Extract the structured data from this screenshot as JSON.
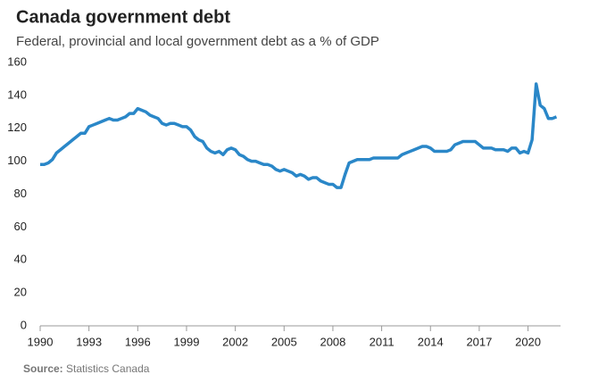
{
  "chart_data": {
    "type": "line",
    "title": "Canada government debt",
    "subtitle": "Federal, provincial and local government debt as a % of GDP",
    "source_label": "Source:",
    "source": "Statistics Canada",
    "x": [
      1990,
      1990.25,
      1990.5,
      1990.75,
      1991,
      1991.25,
      1991.5,
      1991.75,
      1992,
      1992.25,
      1992.5,
      1992.75,
      1993,
      1993.25,
      1993.5,
      1993.75,
      1994,
      1994.25,
      1994.5,
      1994.75,
      1995,
      1995.25,
      1995.5,
      1995.75,
      1996,
      1996.25,
      1996.5,
      1996.75,
      1997,
      1997.25,
      1997.5,
      1997.75,
      1998,
      1998.25,
      1998.5,
      1998.75,
      1999,
      1999.25,
      1999.5,
      1999.75,
      2000,
      2000.25,
      2000.5,
      2000.75,
      2001,
      2001.25,
      2001.5,
      2001.75,
      2002,
      2002.25,
      2002.5,
      2002.75,
      2003,
      2003.25,
      2003.5,
      2003.75,
      2004,
      2004.25,
      2004.5,
      2004.75,
      2005,
      2005.25,
      2005.5,
      2005.75,
      2006,
      2006.25,
      2006.5,
      2006.75,
      2007,
      2007.25,
      2007.5,
      2007.75,
      2008,
      2008.25,
      2008.5,
      2008.75,
      2009,
      2009.25,
      2009.5,
      2009.75,
      2010,
      2010.25,
      2010.5,
      2010.75,
      2011,
      2011.25,
      2011.5,
      2011.75,
      2012,
      2012.25,
      2012.5,
      2012.75,
      2013,
      2013.25,
      2013.5,
      2013.75,
      2014,
      2014.25,
      2014.5,
      2014.75,
      2015,
      2015.25,
      2015.5,
      2015.75,
      2016,
      2016.25,
      2016.5,
      2016.75,
      2017,
      2017.25,
      2017.5,
      2017.75,
      2018,
      2018.25,
      2018.5,
      2018.75,
      2019,
      2019.25,
      2019.5,
      2019.75,
      2020,
      2020.25,
      2020.5,
      2020.75,
      2021,
      2021.25,
      2021.5,
      2021.75
    ],
    "series": [
      {
        "name": "Government debt",
        "color": "#2a87c8",
        "values": [
          98,
          98,
          99,
          101,
          105,
          107,
          109,
          111,
          113,
          115,
          117,
          117,
          121,
          122,
          123,
          124,
          125,
          126,
          125,
          125,
          126,
          127,
          129,
          129,
          132,
          131,
          130,
          128,
          127,
          126,
          123,
          122,
          123,
          123,
          122,
          121,
          121,
          119,
          115,
          113,
          112,
          108,
          106,
          105,
          106,
          104,
          107,
          108,
          107,
          104,
          103,
          101,
          100,
          100,
          99,
          98,
          98,
          97,
          95,
          94,
          95,
          94,
          93,
          91,
          92,
          91,
          89,
          90,
          90,
          88,
          87,
          86,
          86,
          84,
          84,
          92,
          99,
          100,
          101,
          101,
          101,
          101,
          102,
          102,
          102,
          102,
          102,
          102,
          102,
          104,
          105,
          106,
          107,
          108,
          109,
          109,
          108,
          106,
          106,
          106,
          106,
          107,
          110,
          111,
          112,
          112,
          112,
          112,
          110,
          108,
          108,
          108,
          107,
          107,
          107,
          106,
          108,
          108,
          105,
          106,
          105,
          113,
          147,
          134,
          132,
          126,
          126,
          127
        ]
      }
    ],
    "xlim": [
      1990,
      2022
    ],
    "xticks": [
      1990,
      1993,
      1996,
      1999,
      2002,
      2005,
      2008,
      2011,
      2014,
      2017,
      2020
    ],
    "ylim": [
      0,
      160
    ],
    "yticks": [
      0,
      20,
      40,
      60,
      80,
      100,
      120,
      140,
      160
    ],
    "grid": false
  }
}
